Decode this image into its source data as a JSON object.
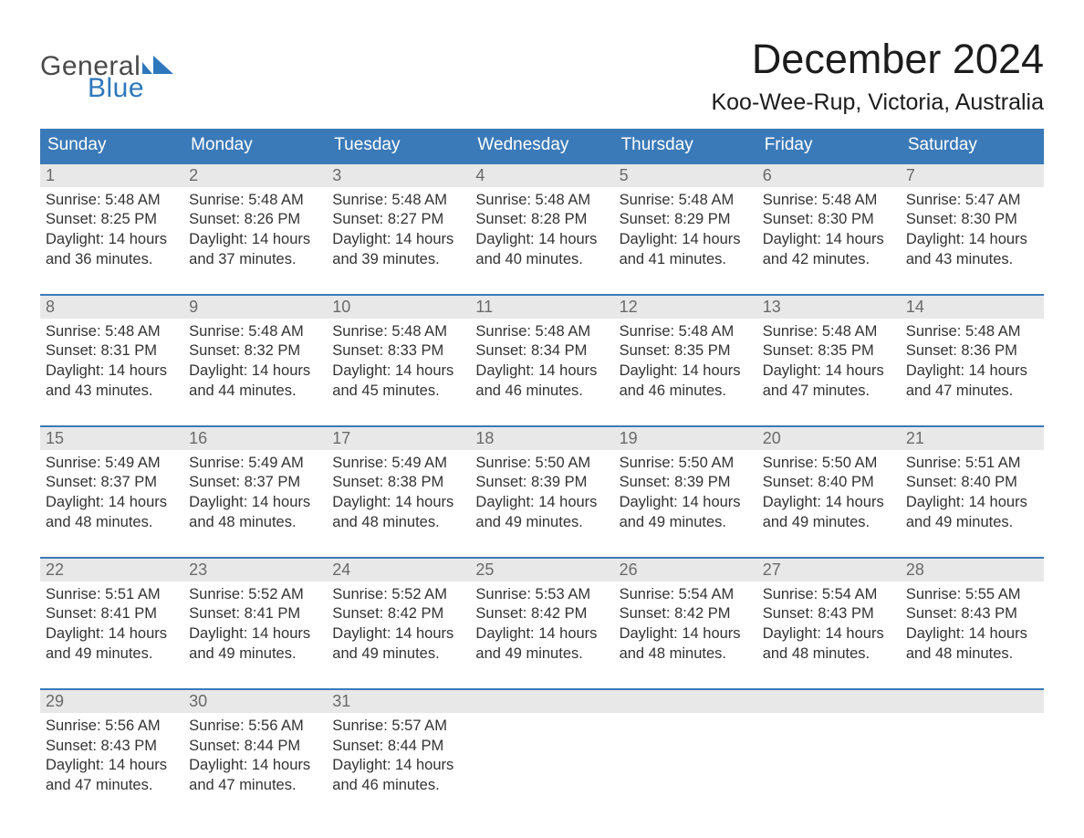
{
  "brand": {
    "word1": "General",
    "word2": "Blue",
    "mark_color": "#2f77bc",
    "word1_color": "#4a4a4a"
  },
  "title": "December 2024",
  "location": "Koo-Wee-Rup, Victoria, Australia",
  "colors": {
    "header_bg": "#3a7ab8",
    "header_text": "#ffffff",
    "daynum_bg": "#e8e8e8",
    "daynum_text": "#6a6a6a",
    "body_text": "#333333",
    "week_border": "#3a7ab8",
    "page_bg": "#ffffff"
  },
  "fonts": {
    "title_size_pt": 34,
    "location_size_pt": 19,
    "dow_size_pt": 14,
    "daynum_size_pt": 14,
    "detail_size_pt": 12
  },
  "days_of_week": [
    "Sunday",
    "Monday",
    "Tuesday",
    "Wednesday",
    "Thursday",
    "Friday",
    "Saturday"
  ],
  "weeks": [
    [
      {
        "n": "1",
        "sunrise": "5:48 AM",
        "sunset": "8:25 PM",
        "daylight": "14 hours and 36 minutes."
      },
      {
        "n": "2",
        "sunrise": "5:48 AM",
        "sunset": "8:26 PM",
        "daylight": "14 hours and 37 minutes."
      },
      {
        "n": "3",
        "sunrise": "5:48 AM",
        "sunset": "8:27 PM",
        "daylight": "14 hours and 39 minutes."
      },
      {
        "n": "4",
        "sunrise": "5:48 AM",
        "sunset": "8:28 PM",
        "daylight": "14 hours and 40 minutes."
      },
      {
        "n": "5",
        "sunrise": "5:48 AM",
        "sunset": "8:29 PM",
        "daylight": "14 hours and 41 minutes."
      },
      {
        "n": "6",
        "sunrise": "5:48 AM",
        "sunset": "8:30 PM",
        "daylight": "14 hours and 42 minutes."
      },
      {
        "n": "7",
        "sunrise": "5:47 AM",
        "sunset": "8:30 PM",
        "daylight": "14 hours and 43 minutes."
      }
    ],
    [
      {
        "n": "8",
        "sunrise": "5:48 AM",
        "sunset": "8:31 PM",
        "daylight": "14 hours and 43 minutes."
      },
      {
        "n": "9",
        "sunrise": "5:48 AM",
        "sunset": "8:32 PM",
        "daylight": "14 hours and 44 minutes."
      },
      {
        "n": "10",
        "sunrise": "5:48 AM",
        "sunset": "8:33 PM",
        "daylight": "14 hours and 45 minutes."
      },
      {
        "n": "11",
        "sunrise": "5:48 AM",
        "sunset": "8:34 PM",
        "daylight": "14 hours and 46 minutes."
      },
      {
        "n": "12",
        "sunrise": "5:48 AM",
        "sunset": "8:35 PM",
        "daylight": "14 hours and 46 minutes."
      },
      {
        "n": "13",
        "sunrise": "5:48 AM",
        "sunset": "8:35 PM",
        "daylight": "14 hours and 47 minutes."
      },
      {
        "n": "14",
        "sunrise": "5:48 AM",
        "sunset": "8:36 PM",
        "daylight": "14 hours and 47 minutes."
      }
    ],
    [
      {
        "n": "15",
        "sunrise": "5:49 AM",
        "sunset": "8:37 PM",
        "daylight": "14 hours and 48 minutes."
      },
      {
        "n": "16",
        "sunrise": "5:49 AM",
        "sunset": "8:37 PM",
        "daylight": "14 hours and 48 minutes."
      },
      {
        "n": "17",
        "sunrise": "5:49 AM",
        "sunset": "8:38 PM",
        "daylight": "14 hours and 48 minutes."
      },
      {
        "n": "18",
        "sunrise": "5:50 AM",
        "sunset": "8:39 PM",
        "daylight": "14 hours and 49 minutes."
      },
      {
        "n": "19",
        "sunrise": "5:50 AM",
        "sunset": "8:39 PM",
        "daylight": "14 hours and 49 minutes."
      },
      {
        "n": "20",
        "sunrise": "5:50 AM",
        "sunset": "8:40 PM",
        "daylight": "14 hours and 49 minutes."
      },
      {
        "n": "21",
        "sunrise": "5:51 AM",
        "sunset": "8:40 PM",
        "daylight": "14 hours and 49 minutes."
      }
    ],
    [
      {
        "n": "22",
        "sunrise": "5:51 AM",
        "sunset": "8:41 PM",
        "daylight": "14 hours and 49 minutes."
      },
      {
        "n": "23",
        "sunrise": "5:52 AM",
        "sunset": "8:41 PM",
        "daylight": "14 hours and 49 minutes."
      },
      {
        "n": "24",
        "sunrise": "5:52 AM",
        "sunset": "8:42 PM",
        "daylight": "14 hours and 49 minutes."
      },
      {
        "n": "25",
        "sunrise": "5:53 AM",
        "sunset": "8:42 PM",
        "daylight": "14 hours and 49 minutes."
      },
      {
        "n": "26",
        "sunrise": "5:54 AM",
        "sunset": "8:42 PM",
        "daylight": "14 hours and 48 minutes."
      },
      {
        "n": "27",
        "sunrise": "5:54 AM",
        "sunset": "8:43 PM",
        "daylight": "14 hours and 48 minutes."
      },
      {
        "n": "28",
        "sunrise": "5:55 AM",
        "sunset": "8:43 PM",
        "daylight": "14 hours and 48 minutes."
      }
    ],
    [
      {
        "n": "29",
        "sunrise": "5:56 AM",
        "sunset": "8:43 PM",
        "daylight": "14 hours and 47 minutes."
      },
      {
        "n": "30",
        "sunrise": "5:56 AM",
        "sunset": "8:44 PM",
        "daylight": "14 hours and 47 minutes."
      },
      {
        "n": "31",
        "sunrise": "5:57 AM",
        "sunset": "8:44 PM",
        "daylight": "14 hours and 46 minutes."
      },
      null,
      null,
      null,
      null
    ]
  ],
  "labels": {
    "sunrise_prefix": "Sunrise: ",
    "sunset_prefix": "Sunset: ",
    "daylight_prefix": "Daylight: "
  }
}
